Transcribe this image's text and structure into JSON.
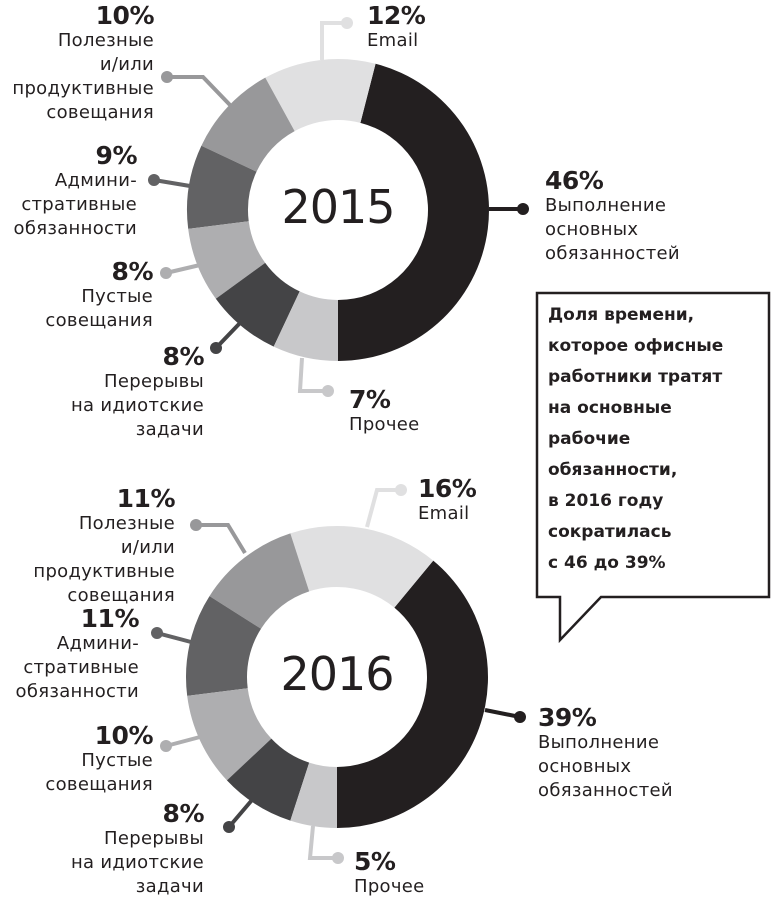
{
  "charts": [
    {
      "year": "2015",
      "segments": [
        {
          "key": "main",
          "pct": "46%",
          "label": "Выполнение\nосновных\nобязанностей",
          "color": "#231f20"
        },
        {
          "key": "email",
          "pct": "12%",
          "label": "Email",
          "color": "#e0e0e1"
        },
        {
          "key": "useful",
          "pct": "10%",
          "label": "Полезные\nи/или\nпродуктивные\nсовещания",
          "color": "#98989a"
        },
        {
          "key": "admin",
          "pct": "9%",
          "label": "Админи-\nстративные\nобязанности",
          "color": "#626264"
        },
        {
          "key": "empty",
          "pct": "8%",
          "label": "Пустые\nсовещания",
          "color": "#aeaeb0"
        },
        {
          "key": "breaks",
          "pct": "8%",
          "label": "Перерывы\nна идиотские\nзадачи",
          "color": "#444446"
        },
        {
          "key": "other",
          "pct": "7%",
          "label": "Прочее",
          "color": "#c8c8ca"
        }
      ]
    },
    {
      "year": "2016",
      "segments": [
        {
          "key": "main",
          "pct": "39%",
          "label": "Выполнение\nосновных\nобязанностей",
          "color": "#231f20"
        },
        {
          "key": "email",
          "pct": "16%",
          "label": "Email",
          "color": "#e0e0e1"
        },
        {
          "key": "useful",
          "pct": "11%",
          "label": "Полезные\nи/или\nпродуктивные\nсовещания",
          "color": "#98989a"
        },
        {
          "key": "admin",
          "pct": "11%",
          "label": "Админи-\nстративные\nобязанности",
          "color": "#626264"
        },
        {
          "key": "empty",
          "pct": "10%",
          "label": "Пустые\nсовещания",
          "color": "#aeaeb0"
        },
        {
          "key": "breaks",
          "pct": "8%",
          "label": "Перерывы\nна идиотские\nзадачи",
          "color": "#444446"
        },
        {
          "key": "other",
          "pct": "5%",
          "label": "Прочее",
          "color": "#c8c8ca"
        }
      ]
    }
  ],
  "callout": {
    "text": "Доля времени,\nкоторое офисные\nработники тратят\nна основные\nрабочие\nобязанности,\nв 2016 году\nсократилась\nс 46 до 39%"
  },
  "chart_data": [
    {
      "type": "pie",
      "title": "2015",
      "categories": [
        "Выполнение основных обязанностей",
        "Email",
        "Полезные и/или продуктивные совещания",
        "Административные обязанности",
        "Пустые совещания",
        "Перерывы на идиотские задачи",
        "Прочее"
      ],
      "values": [
        46,
        12,
        10,
        9,
        8,
        8,
        7
      ],
      "unit": "%",
      "donut": true
    },
    {
      "type": "pie",
      "title": "2016",
      "categories": [
        "Выполнение основных обязанностей",
        "Email",
        "Полезные и/или продуктивные совещания",
        "Административные обязанности",
        "Пустые совещания",
        "Перерывы на идиотские задачи",
        "Прочее"
      ],
      "values": [
        39,
        16,
        11,
        11,
        10,
        8,
        5
      ],
      "unit": "%",
      "donut": true
    }
  ]
}
